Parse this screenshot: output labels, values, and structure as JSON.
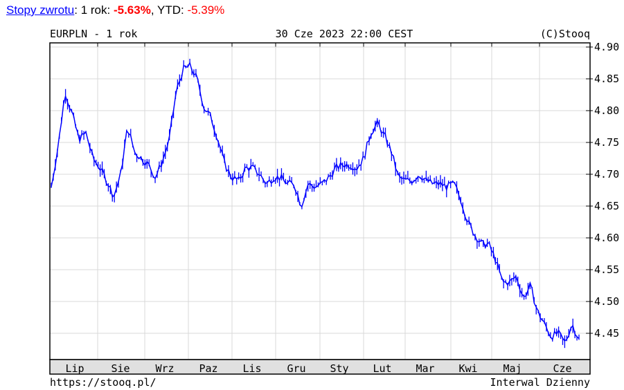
{
  "header": {
    "link_label": "Stopy zwrotu",
    "sep": ": ",
    "one_year_label": "1 rok: ",
    "one_year_value": "-5.63%",
    "ytd_label": ", YTD: ",
    "ytd_value": "-5.39%"
  },
  "chart_data": {
    "type": "line",
    "title_left": "EURPLN - 1 rok",
    "title_center": "30 Cze 2023 22:00 CEST",
    "title_right": "(C)Stooq",
    "footer_left": "https://stooq.pl/",
    "footer_right": "Interwal Dzienny",
    "x_tick_labels": [
      "Lip",
      "Sie",
      "Wrz",
      "Paz",
      "Lis",
      "Gru",
      "Sty",
      "Lut",
      "Mar",
      "Kwi",
      "Maj",
      "Cze"
    ],
    "y_tick_labels": [
      "4.90",
      "4.85",
      "4.80",
      "4.75",
      "4.70",
      "4.65",
      "4.60",
      "4.55",
      "4.50",
      "4.45"
    ],
    "ylim": [
      4.415,
      4.905
    ],
    "grid": true,
    "series_color": "#0000ff",
    "values": [
      4.68,
      4.745,
      4.83,
      4.795,
      4.755,
      4.765,
      4.725,
      4.71,
      4.69,
      4.665,
      4.7,
      4.775,
      4.735,
      4.725,
      4.715,
      4.695,
      4.72,
      4.755,
      4.83,
      4.865,
      4.87,
      4.85,
      4.805,
      4.79,
      4.755,
      4.715,
      4.695,
      4.69,
      4.71,
      4.71,
      4.7,
      4.685,
      4.695,
      4.695,
      4.685,
      4.685,
      4.65,
      4.685,
      4.68,
      4.685,
      4.695,
      4.71,
      4.715,
      4.715,
      4.71,
      4.725,
      4.765,
      4.78,
      4.76,
      4.735,
      4.695,
      4.69,
      4.69,
      4.7,
      4.69,
      4.685,
      4.685,
      4.68,
      4.685,
      4.66,
      4.625,
      4.605,
      4.59,
      4.59,
      4.565,
      4.53,
      4.53,
      4.54,
      4.505,
      4.525,
      4.485,
      4.465,
      4.445,
      4.45,
      4.435,
      4.465,
      4.44
    ]
  }
}
